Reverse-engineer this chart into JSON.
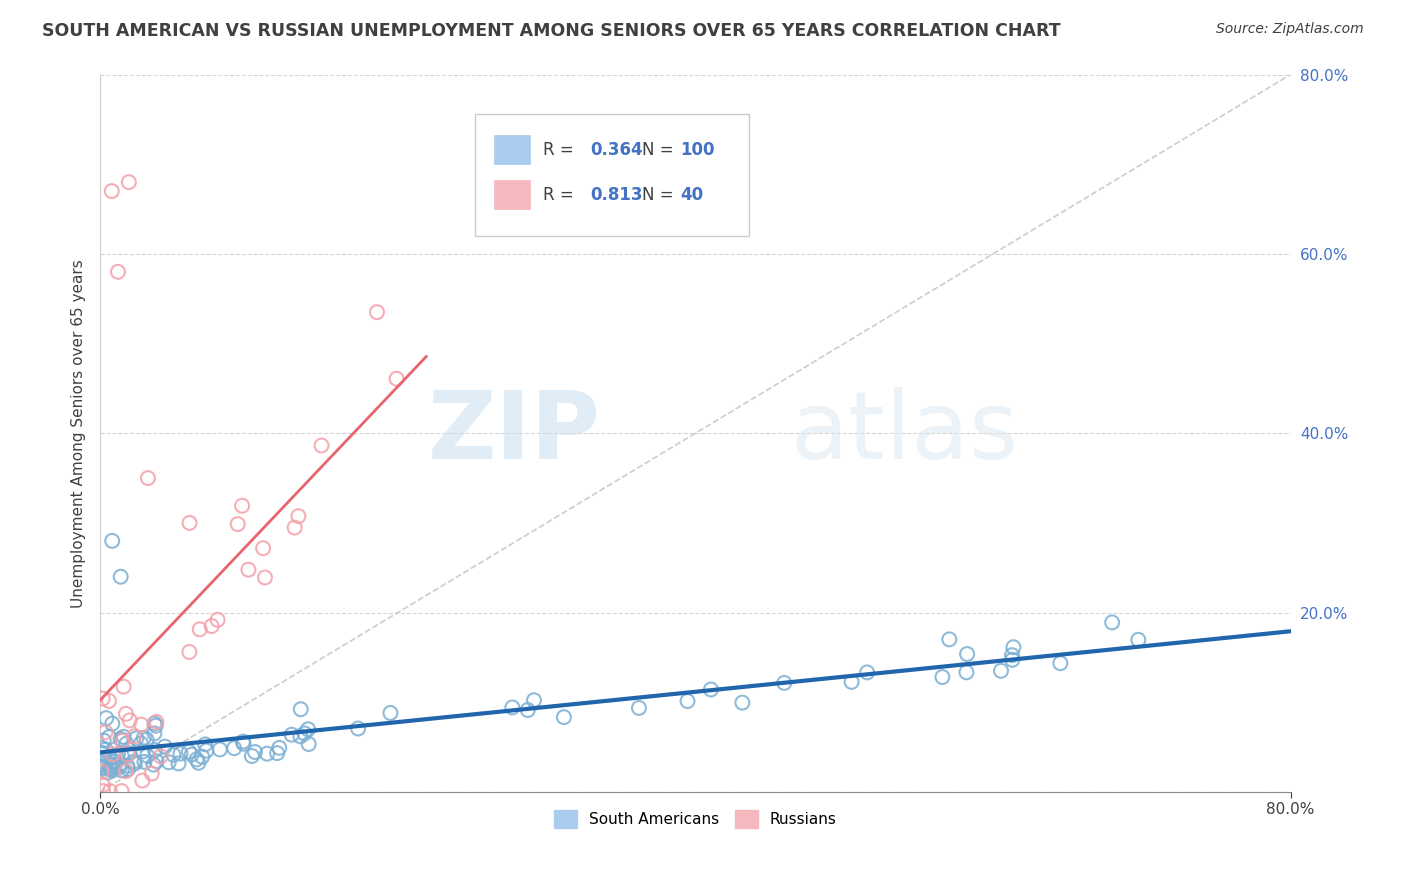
{
  "title": "SOUTH AMERICAN VS RUSSIAN UNEMPLOYMENT AMONG SENIORS OVER 65 YEARS CORRELATION CHART",
  "source": "Source: ZipAtlas.com",
  "ylabel": "Unemployment Among Seniors over 65 years",
  "xlim": [
    0,
    0.8
  ],
  "ylim": [
    0,
    0.8
  ],
  "xtick_left_label": "0.0%",
  "xtick_right_label": "80.0%",
  "ytick_labels": [
    "",
    "20.0%",
    "40.0%",
    "60.0%",
    "80.0%"
  ],
  "ytick_values": [
    0.0,
    0.2,
    0.4,
    0.6,
    0.8
  ],
  "south_american_color": "#7bafd4",
  "russian_color": "#f4a0a8",
  "south_american_line_color": "#2166ac",
  "russian_line_color": "#e8646e",
  "R_south": 0.364,
  "N_south": 100,
  "R_russian": 0.813,
  "N_russian": 40,
  "watermark_zip": "ZIP",
  "watermark_atlas": "atlas",
  "background_color": "#ffffff",
  "grid_color": "#cccccc",
  "title_color": "#404040",
  "legend_blue_color": "#aaccee",
  "legend_pink_color": "#f4b8be",
  "stat_color": "#4472c4",
  "label_color": "#404040"
}
